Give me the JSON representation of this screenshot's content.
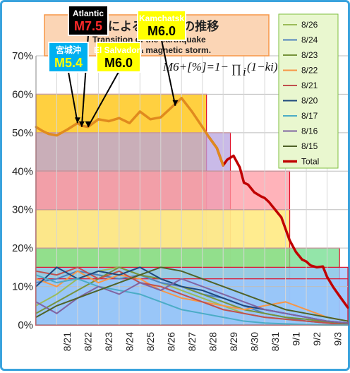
{
  "chart_data": {
    "type": "line",
    "title": "による 生確率の推移",
    "subtitle_lines": [
      "Transition of the  earthquake",
      "  by a magnetic storm."
    ],
    "formula": {
      "lhs": "M6+[%]=1−",
      "prod": "∏",
      "sub": "i",
      "rhs": "(1−ki)"
    },
    "ylim": [
      0,
      70
    ],
    "yticks": [
      "0%",
      "10%",
      "20%",
      "30%",
      "40%",
      "50%",
      "60%",
      "70%"
    ],
    "xlabels": [
      "8/21",
      "8/22",
      "8/23",
      "8/24",
      "8/25",
      "8/26",
      "8/27",
      "8/28",
      "8/29",
      "8/30",
      "8/31",
      "9/1",
      "9/2",
      "9/3"
    ],
    "legend": [
      "8/26",
      "8/24",
      "8/23",
      "8/22",
      "8/21",
      "8/20",
      "8/17",
      "8/16",
      "8/15",
      "Total"
    ],
    "colors": {
      "8/26": "#9bbb59",
      "8/24": "#4f81bd",
      "8/23": "#77933c",
      "8/22": "#f79646",
      "8/21": "#c0504d",
      "8/20": "#1f497d",
      "8/17": "#4bacc6",
      "8/16": "#8064a2",
      "8/15": "#4f6228",
      "Total": "#c00000"
    },
    "bands": [
      {
        "top": 60,
        "x_end": 8.2,
        "fill": "#ffc000"
      },
      {
        "top": 50,
        "x_end": 9.35,
        "fill": "#b7a3e0"
      },
      {
        "top": 40,
        "x_end": 12.2,
        "fill": "#ff9aa3"
      },
      {
        "top": 30,
        "x_end": 12.2,
        "fill": "#ffff80"
      },
      {
        "top": 20,
        "x_end": 14.6,
        "fill": "#6fdc8c"
      },
      {
        "top": 15,
        "x_end": 15.0,
        "fill": "#99c4ff"
      },
      {
        "top": 12,
        "x_end": 15.0,
        "fill": "#99c4ff"
      }
    ],
    "total": {
      "name": "Total",
      "x": [
        0,
        0.3,
        0.6,
        1.0,
        1.5,
        2.0,
        2.2,
        2.5,
        3.0,
        3.5,
        4.0,
        4.5,
        5.0,
        5.5,
        6.0,
        6.5,
        7.0,
        7.5,
        8.0,
        8.3,
        8.7,
        9.0,
        9.2,
        9.5,
        9.8,
        10.0,
        10.2,
        10.5,
        10.8,
        11.0,
        11.2,
        11.5,
        11.8,
        12.0,
        12.2,
        12.5,
        12.8,
        13.0,
        13.2,
        13.5,
        13.8,
        14.0,
        14.3,
        14.6,
        15.0
      ],
      "y": [
        51.5,
        50.5,
        49.7,
        49.3,
        50.8,
        52.5,
        51.8,
        51.5,
        53.5,
        53,
        53.8,
        52.5,
        55.5,
        53.5,
        54,
        56.5,
        59,
        55.5,
        51.5,
        49,
        46,
        41.5,
        43,
        44,
        41,
        37,
        36.5,
        34.5,
        33.5,
        33,
        32,
        30,
        28,
        25,
        22,
        19,
        17,
        16.5,
        15.5,
        15,
        15.2,
        12.5,
        9.8,
        7.5,
        4.5
      ],
      "orange_until": 9
    },
    "series": [
      {
        "name": "8/26",
        "x": [
          0,
          1,
          2,
          3,
          4,
          5,
          6,
          7,
          8,
          9,
          10,
          11,
          12,
          13,
          14,
          15
        ],
        "y": [
          5,
          8,
          12,
          14,
          15,
          13,
          11,
          9,
          7,
          5,
          3,
          2,
          1.5,
          1,
          0.5,
          0
        ]
      },
      {
        "name": "8/24",
        "x": [
          0,
          1,
          2,
          3,
          4,
          5,
          6,
          7,
          8,
          9,
          10,
          11,
          12,
          13,
          14,
          15
        ],
        "y": [
          11,
          12,
          14,
          13,
          12,
          13,
          11,
          10,
          8,
          7,
          5,
          3,
          2,
          1,
          0.5,
          0
        ]
      },
      {
        "name": "8/23",
        "x": [
          0,
          1,
          2,
          3,
          4,
          5,
          6,
          7,
          8,
          9,
          10,
          11,
          12,
          13,
          14,
          15
        ],
        "y": [
          3,
          6,
          9,
          12,
          15,
          13,
          12,
          10,
          8,
          6,
          4,
          3,
          2,
          1.5,
          0.8,
          0.2
        ]
      },
      {
        "name": "8/22",
        "x": [
          0,
          1,
          2,
          3,
          4,
          5,
          6,
          7,
          8,
          9,
          10,
          11,
          12,
          13,
          14,
          15
        ],
        "y": [
          12,
          10,
          14,
          11,
          13,
          12,
          9,
          7,
          6,
          5,
          4,
          5,
          6,
          4,
          2,
          1
        ]
      },
      {
        "name": "8/21",
        "x": [
          0,
          1,
          2,
          3,
          4,
          5,
          6,
          7,
          8,
          9,
          10,
          11,
          12,
          13,
          14,
          15
        ],
        "y": [
          14,
          13,
          15,
          12,
          14,
          11,
          10,
          8,
          6,
          4,
          3,
          2,
          1.5,
          1,
          0.5,
          0
        ]
      },
      {
        "name": "8/20",
        "x": [
          0,
          1,
          2,
          3,
          4,
          5,
          6,
          7,
          8,
          9,
          10,
          11,
          12,
          13,
          14,
          15
        ],
        "y": [
          10,
          15,
          12,
          14,
          13,
          15,
          12,
          10,
          9,
          7,
          5,
          4,
          3,
          2,
          1,
          0.5
        ]
      },
      {
        "name": "8/17",
        "x": [
          0,
          1,
          2,
          3,
          4,
          5,
          6,
          7,
          8,
          9,
          10,
          11,
          12,
          13,
          14,
          15
        ],
        "y": [
          13,
          11,
          12,
          10,
          9,
          8,
          6,
          4,
          3,
          2,
          1,
          0.5,
          0.3,
          0.1,
          0,
          0
        ]
      },
      {
        "name": "8/16",
        "x": [
          0,
          1,
          2,
          3,
          4,
          5,
          6,
          7,
          8,
          9,
          10,
          11,
          12,
          13,
          14,
          15
        ],
        "y": [
          6,
          3,
          7,
          10,
          8,
          11,
          9,
          12,
          10,
          8,
          6,
          4,
          3,
          2,
          1,
          0.5
        ]
      },
      {
        "name": "8/15",
        "x": [
          0,
          1,
          2,
          3,
          4,
          5,
          6,
          7,
          8,
          9,
          10,
          11,
          12,
          13,
          14,
          15
        ],
        "y": [
          2,
          5,
          7,
          9,
          11,
          13,
          15,
          14,
          12,
          10,
          8,
          6,
          4,
          3,
          2,
          1
        ]
      }
    ],
    "callouts": [
      {
        "name": "Atlantic",
        "mag": "M7.5",
        "box_fill": "#000000",
        "mag_color": "#ff2a2a",
        "target_x": 2.2,
        "target_y": 51.5
      },
      {
        "name": "宮城沖",
        "mag": "M5.4",
        "box_fill": "#00b0f0",
        "mag_color": "#ffff00",
        "target_x": 2.0,
        "target_y": 52.5
      },
      {
        "name": "El Salvadorr",
        "mag": "M6.0",
        "box_fill": "#ffff00",
        "mag_color": "#000000",
        "target_x": 2.5,
        "target_y": 51.5
      },
      {
        "name": "Kamchatsk",
        "mag": "M6.0",
        "box_fill": "#ffff00",
        "mag_color": "#000000",
        "target_x": 6.7,
        "target_y": 57
      }
    ]
  }
}
